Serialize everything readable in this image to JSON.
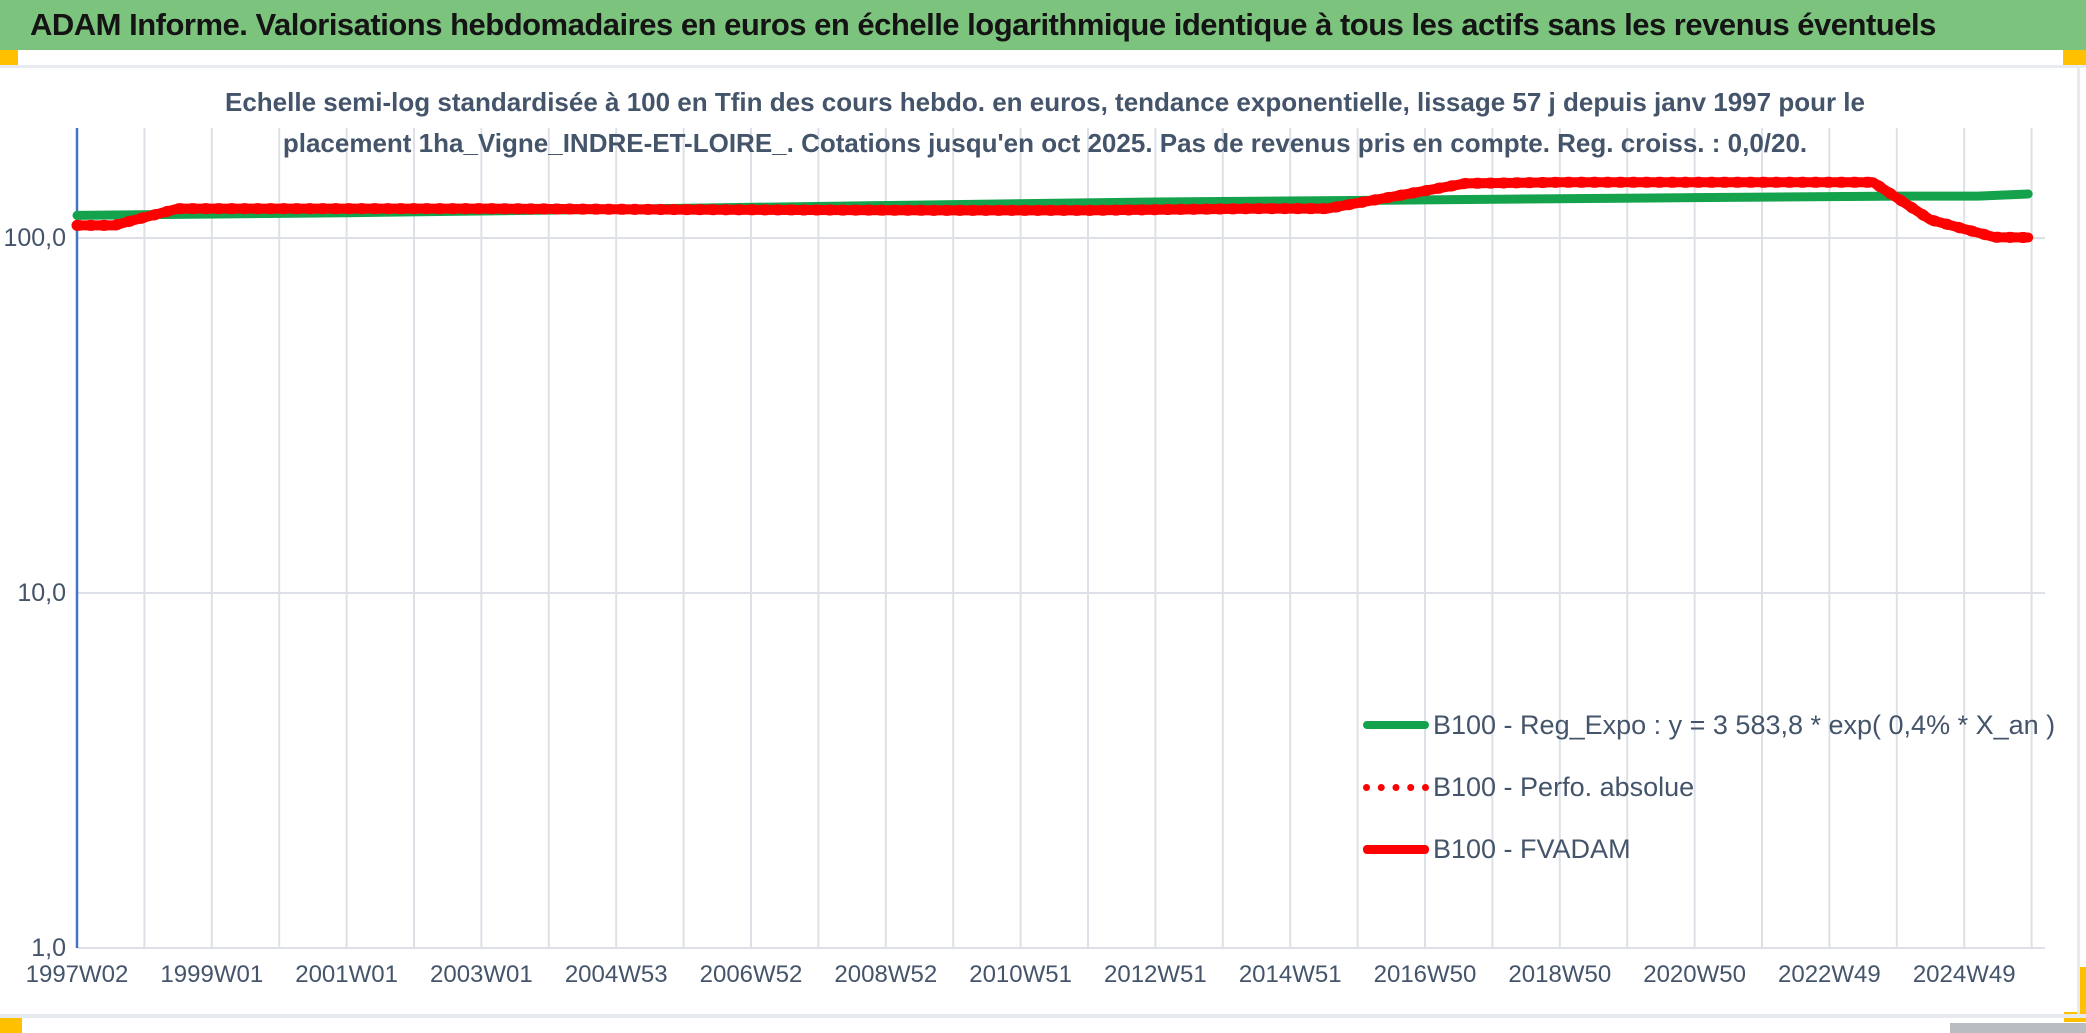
{
  "header": {
    "title": "ADAM Informe. Valorisations hebdomadaires en euros en échelle logarithmique identique à tous les actifs sans les revenus éventuels"
  },
  "chart": {
    "subtitle_line1": "Echelle semi-log standardisée à 100 en Tfin des cours hebdo. en euros, tendance exponentielle, lissage 57 j depuis janv 1997 pour le",
    "subtitle_line2": "placement 1ha_Vigne_INDRE-ET-LOIRE_. Cotations jusqu'en oct 2025. Pas de revenus pris en compte. Reg. croiss. : 0,0/20."
  },
  "colors": {
    "header_bg": "#7cc47e",
    "accent_yellow": "#ffc000",
    "axis_blue": "#4472c4",
    "grid": "#dde1e7",
    "text_blue_gray": "#44546a",
    "series_green": "#14a24c",
    "series_red": "#ff0000"
  },
  "chart_data": {
    "type": "line",
    "title": "Echelle semi-log standardisée à 100 en Tfin des cours hebdo. en euros, tendance exponentielle, lissage 57 j depuis janv 1997 pour le placement 1ha_Vigne_INDRE-ET-LOIRE_. Cotations jusqu'en oct 2025. Pas de revenus pris en compte. Reg. croiss. : 0,0/20.",
    "y_axis": {
      "scale": "log",
      "ticks": [
        100,
        10,
        1
      ],
      "tick_labels": [
        "100,0",
        "10,0",
        "1,0"
      ],
      "ylim": [
        1,
        205
      ]
    },
    "x_axis": {
      "tick_labels": [
        "1997W02",
        "1999W01",
        "2001W01",
        "2003W01",
        "2004W53",
        "2006W52",
        "2008W52",
        "2010W51",
        "2012W51",
        "2014W51",
        "2016W50",
        "2018W50",
        "2020W50",
        "2022W49",
        "2024W49"
      ],
      "tick_step_years": 2,
      "range_years": [
        1997.0,
        2026.1
      ],
      "grid": "yearly"
    },
    "legend_position": "inside-right-bottom",
    "series": [
      {
        "name": "B100 - Reg_Expo : y = 3 583,8 * exp( 0,4% *  X_an )",
        "color": "#14a24c",
        "style": "solid",
        "width": 9,
        "points": [
          [
            1997.0,
            115.8
          ],
          [
            2001,
            117.8
          ],
          [
            2005,
            120.5
          ],
          [
            2009,
            123.5
          ],
          [
            2013,
            126.3
          ],
          [
            2017,
            128.0
          ],
          [
            2021,
            130.0
          ],
          [
            2024,
            131.2
          ],
          [
            2025.2,
            131.2
          ],
          [
            2025.95,
            133.0
          ]
        ]
      },
      {
        "name": "B100 - Perfo. absolue",
        "color": "#ff0000",
        "style": "dotted",
        "width": 11,
        "points": [
          [
            1997.0,
            108.5
          ],
          [
            1997.55,
            108.5
          ],
          [
            1998.5,
            121.0
          ],
          [
            2003,
            121.0
          ],
          [
            2006,
            120.2
          ],
          [
            2010,
            119.6
          ],
          [
            2012,
            119.6
          ],
          [
            2014.5,
            121.0
          ],
          [
            2015.55,
            121.0
          ],
          [
            2017.6,
            142.5
          ],
          [
            2019,
            143.5
          ],
          [
            2023.65,
            143.5
          ],
          [
            2024.5,
            112.5
          ],
          [
            2025.45,
            100.5
          ],
          [
            2025.95,
            100.3
          ]
        ]
      },
      {
        "name": "B100 - FVADAM",
        "color": "#ff0000",
        "style": "solid",
        "width": 10,
        "points": [
          [
            1997.0,
            108.5
          ],
          [
            1997.55,
            108.5
          ],
          [
            1998.5,
            121.0
          ],
          [
            2003,
            121.0
          ],
          [
            2006,
            120.2
          ],
          [
            2010,
            119.6
          ],
          [
            2012,
            119.6
          ],
          [
            2014.5,
            121.0
          ],
          [
            2015.55,
            121.0
          ],
          [
            2017.6,
            142.5
          ],
          [
            2019,
            143.5
          ],
          [
            2023.65,
            143.5
          ],
          [
            2024.5,
            112.5
          ],
          [
            2025.45,
            100.5
          ],
          [
            2025.95,
            100.3
          ]
        ]
      }
    ]
  }
}
